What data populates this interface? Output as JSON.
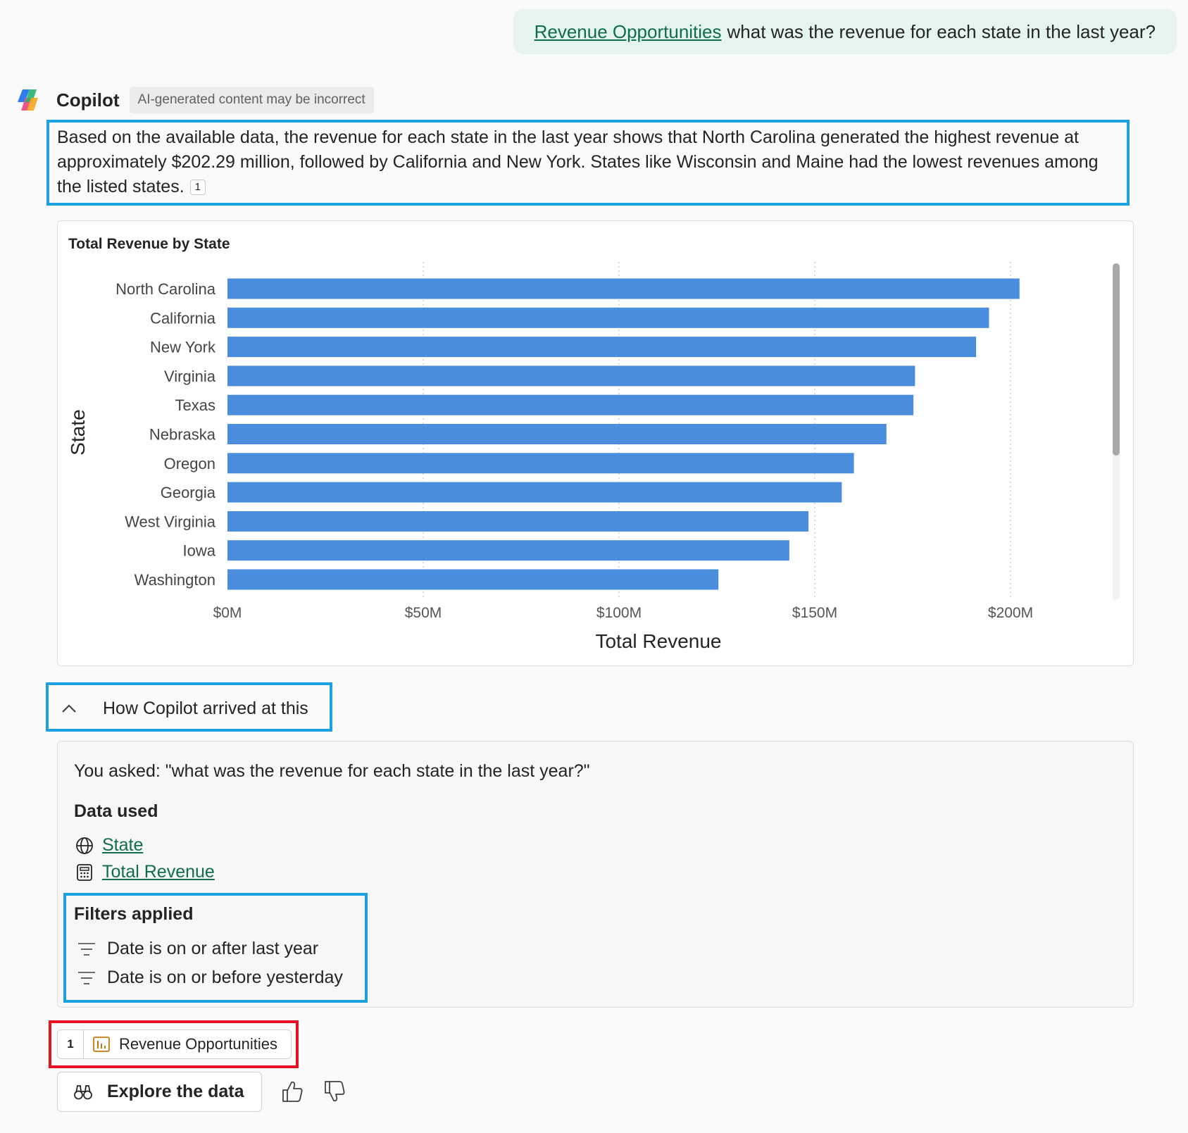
{
  "user_message": {
    "link": "Revenue Opportunities",
    "text": "what was the revenue for each state in the last year?"
  },
  "header": {
    "name": "Copilot",
    "disclaimer": "AI-generated content may be incorrect"
  },
  "answer": {
    "text": "Based on the available data, the revenue for each state in the last year shows that North Carolina generated the highest revenue at approximately $202.29 million, followed by California and New York. States like Wisconsin and Maine had the lowest revenues among the listed states.",
    "citation": "1"
  },
  "chart_data": {
    "type": "bar",
    "orientation": "horizontal",
    "title": "Total Revenue by State",
    "xlabel": "Total Revenue",
    "ylabel": "State",
    "categories": [
      "North Carolina",
      "California",
      "New York",
      "Virginia",
      "Texas",
      "Nebraska",
      "Oregon",
      "Georgia",
      "West Virginia",
      "Iowa",
      "Washington"
    ],
    "values": [
      202.29,
      194.5,
      191.2,
      175.6,
      175.2,
      168.3,
      160.0,
      156.9,
      148.4,
      143.5,
      125.4
    ],
    "value_unit": "$M",
    "xlim": [
      0,
      225
    ],
    "xticks": [
      0,
      50,
      100,
      150,
      200
    ],
    "xtick_labels": [
      "$0M",
      "$50M",
      "$100M",
      "$150M",
      "$200M"
    ],
    "bar_color": "#4a8ddc",
    "grid": "vertical dotted",
    "scrollable": true
  },
  "how": {
    "toggle_label": "How Copilot arrived at this",
    "asked": "You asked: \"what was the revenue for each state in the last year?\"",
    "data_used_title": "Data used",
    "data_used": [
      {
        "label": "State",
        "icon": "globe-icon"
      },
      {
        "label": "Total Revenue",
        "icon": "calculator-icon"
      }
    ],
    "filters_title": "Filters applied",
    "filters": [
      "Date is on or after last year",
      "Date is on or before yesterday"
    ]
  },
  "source": {
    "number": "1",
    "label": "Revenue Opportunities",
    "icon": "report-icon"
  },
  "actions": {
    "explore_label": "Explore the data"
  },
  "colors": {
    "accent_link": "#0f6d4f",
    "highlight_blue": "#1ba1e2",
    "highlight_red": "#e81123",
    "user_bubble": "#e6f4ee"
  }
}
